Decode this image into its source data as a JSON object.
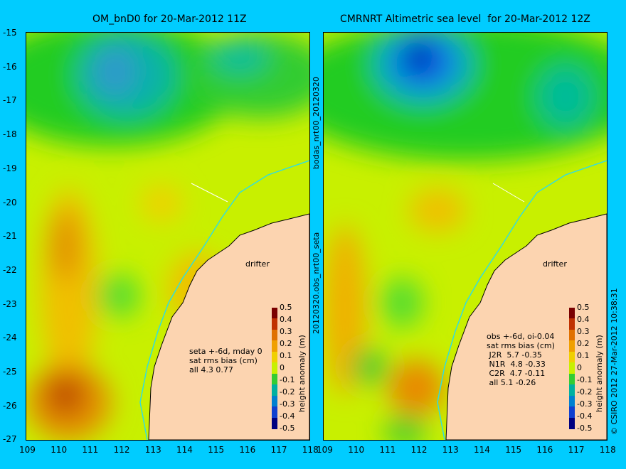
{
  "titles": {
    "left": "OM_bnD0 for 20-Mar-2012 11Z",
    "right": "CMRNRT Altimetric sea level  for 20-Mar-2012 12Z"
  },
  "y_ticks": [
    "-15",
    "-16",
    "-17",
    "-18",
    "-19",
    "-20",
    "-21",
    "-22",
    "-23",
    "-24",
    "-25",
    "-26",
    "-27"
  ],
  "x_ticks": [
    "109",
    "110",
    "111",
    "112",
    "113",
    "114",
    "115",
    "116",
    "117",
    "118"
  ],
  "center_labels": {
    "top": "bodas_nrt00_20120320",
    "bottom": "20120320.obs_nrt00_seta"
  },
  "left_panel": {
    "drifter": "drifter",
    "stats": "seta +-6d, mday 0\nsat rms bias (cm)\nall 4.3 0.77"
  },
  "right_panel": {
    "drifter": "drifter",
    "stats": "obs +-6d, oi-0.04\nsat rms bias (cm)\n J2R  5.7 -0.35\n N1R  4.8 -0.33\n C2R  4.7 -0.11\n all 5.1 -0.26"
  },
  "colorbar": {
    "ticks": [
      "0.5",
      "0.4",
      "0.3",
      "0.2",
      "0.1",
      "0",
      "-0.1",
      "-0.2",
      "-0.3",
      "-0.4",
      "-0.5"
    ],
    "label": "height anomaly (m)"
  },
  "copyright": "© CSIRO 2012  27-Mar-2012 10:38:31",
  "colors": {
    "background": "#00ccff",
    "land": "#fcd4b0",
    "coast": "#000000",
    "shelf_contour": "#33dddd",
    "drifter": "#ff33ff"
  }
}
